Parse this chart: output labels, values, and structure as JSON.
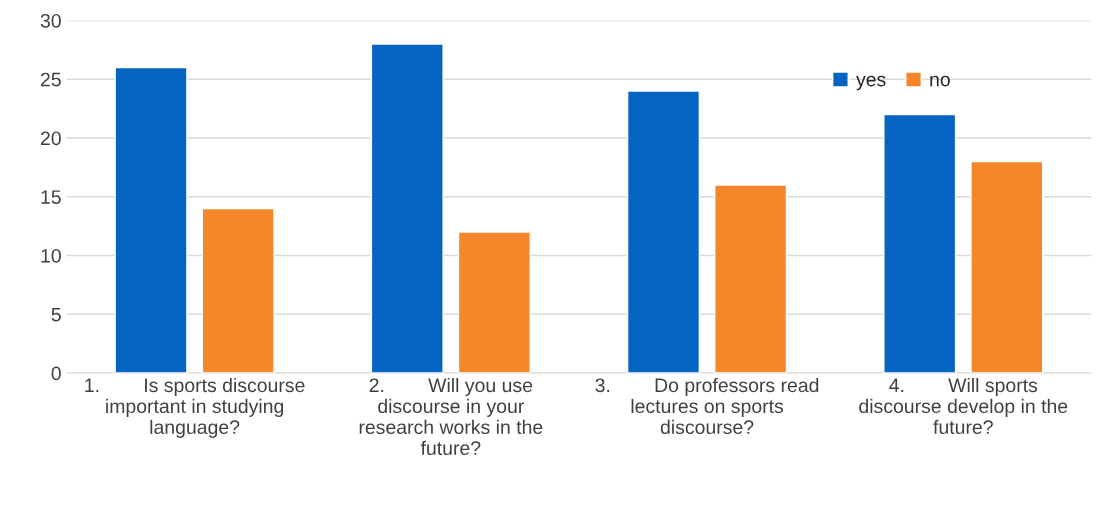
{
  "chart_data": {
    "type": "bar",
    "categories": [
      "1.        Is sports discourse\nimportant in studying\nlanguage?",
      "2.        Will you use\ndiscourse in your\nresearch works in the\nfuture?",
      "3.        Do professors read\nlectures on sports\ndiscourse?",
      "4.        Will sports\ndiscourse develop in the\nfuture?"
    ],
    "series": [
      {
        "name": "yes",
        "color": "#0563c1",
        "values": [
          26,
          28,
          24,
          22
        ]
      },
      {
        "name": "no",
        "color": "#f5862a",
        "values": [
          14,
          12,
          16,
          18
        ]
      }
    ],
    "ylim": [
      0,
      30
    ],
    "yticks": [
      0,
      5,
      10,
      15,
      20,
      25,
      30
    ],
    "grid": "y",
    "legend": "top right"
  }
}
